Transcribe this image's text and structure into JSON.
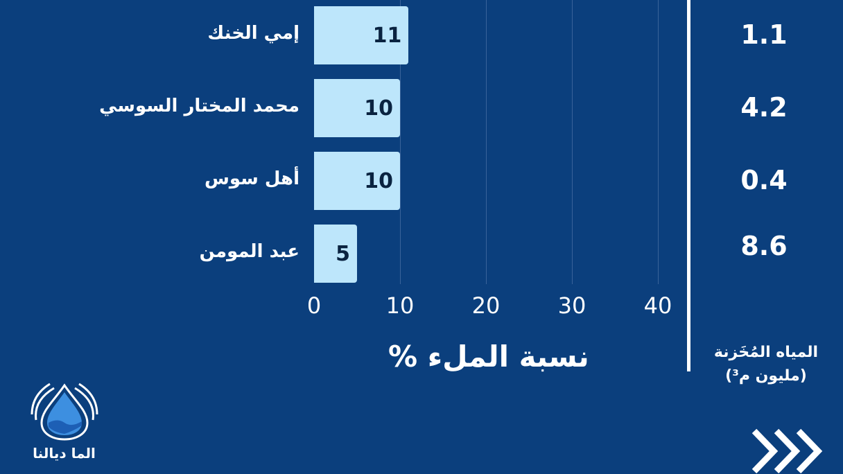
{
  "chart_data": {
    "type": "bar",
    "orientation": "horizontal",
    "categories": [
      "إمي الخنك",
      "محمد المختار السوسي",
      "أهل سوس",
      "عبد المومن"
    ],
    "values": [
      11,
      10,
      10,
      5
    ],
    "xlabel": "نسبة الملء %",
    "xlim": [
      0,
      40
    ],
    "xticks": [
      0,
      10,
      20,
      30,
      40
    ],
    "grid": true,
    "bar_color": "#bde6fb",
    "background": "#0b3f7d",
    "side_column": {
      "label_line1": "المياه المُخَزنة",
      "label_line2": "(مليون م³)",
      "values": [
        "1.1",
        "4.2",
        "0.4",
        "8.6"
      ]
    }
  },
  "logo": {
    "text": "الما ديالنا"
  },
  "icons": {
    "next": "triple-chevron-right-icon",
    "logo": "water-drop-hands-icon"
  }
}
